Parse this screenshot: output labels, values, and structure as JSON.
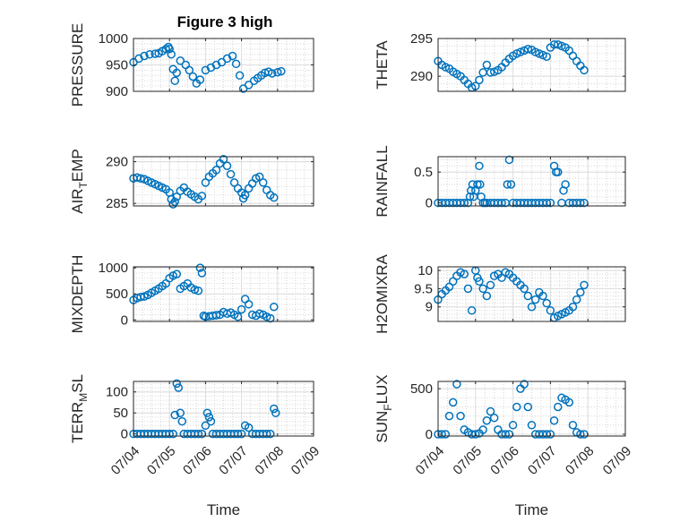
{
  "figure": {
    "title": "Figure 3 high",
    "marker_color": "#0072BD"
  },
  "chart_data": [
    {
      "type": "scatter",
      "ylabel": "PRESSURE",
      "xlabel": "",
      "xlim": [
        0,
        5
      ],
      "ylim": [
        900,
        1000
      ],
      "yticks": [
        900,
        950,
        1000
      ],
      "ytick_labels": [
        "900",
        "950",
        "1000"
      ],
      "xticks": [
        0,
        1,
        2,
        3,
        4,
        5
      ],
      "xtick_labels": [
        "",
        "",
        "",
        "",
        "",
        ""
      ],
      "grid": true,
      "x": [
        0.0,
        0.15,
        0.3,
        0.45,
        0.6,
        0.7,
        0.8,
        0.9,
        0.97,
        1.0,
        1.05,
        1.1,
        1.15,
        1.2,
        1.3,
        1.45,
        1.55,
        1.65,
        1.75,
        1.85,
        2.0,
        2.15,
        2.3,
        2.45,
        2.6,
        2.75,
        2.85,
        2.95,
        3.05,
        3.2,
        3.35,
        3.45,
        3.55,
        3.65,
        3.75,
        3.85,
        4.0,
        4.1
      ],
      "y": [
        955,
        962,
        967,
        970,
        971,
        972,
        976,
        980,
        984,
        980,
        970,
        942,
        920,
        935,
        958,
        950,
        940,
        928,
        915,
        922,
        940,
        945,
        950,
        955,
        962,
        967,
        952,
        930,
        905,
        912,
        920,
        925,
        930,
        935,
        937,
        934,
        936,
        938
      ]
    },
    {
      "type": "scatter",
      "ylabel": "THETA",
      "xlabel": "",
      "xlim": [
        0,
        5
      ],
      "ylim": [
        288,
        295
      ],
      "yticks": [
        290,
        295
      ],
      "ytick_labels": [
        "290",
        "295"
      ],
      "xticks": [
        0,
        1,
        2,
        3,
        4,
        5
      ],
      "xtick_labels": [
        "",
        "",
        "",
        "",
        "",
        ""
      ],
      "grid": true,
      "x": [
        0.0,
        0.1,
        0.2,
        0.3,
        0.4,
        0.5,
        0.6,
        0.7,
        0.8,
        0.9,
        1.0,
        1.1,
        1.2,
        1.3,
        1.4,
        1.5,
        1.6,
        1.7,
        1.8,
        1.9,
        2.0,
        2.1,
        2.2,
        2.3,
        2.4,
        2.5,
        2.6,
        2.7,
        2.8,
        2.9,
        3.0,
        3.1,
        3.2,
        3.3,
        3.4,
        3.5,
        3.6,
        3.7,
        3.8,
        3.9
      ],
      "y": [
        292.0,
        291.5,
        291.2,
        291.0,
        290.6,
        290.3,
        290.0,
        289.5,
        289.0,
        288.5,
        288.7,
        289.5,
        290.5,
        291.5,
        290.5,
        290.6,
        290.8,
        291.2,
        291.8,
        292.3,
        292.7,
        293.0,
        293.2,
        293.4,
        293.6,
        293.5,
        293.2,
        293.0,
        292.8,
        292.6,
        293.8,
        294.2,
        294.2,
        294.0,
        293.8,
        293.4,
        292.7,
        292.0,
        291.4,
        290.8
      ]
    },
    {
      "type": "scatter",
      "ylabel": "AIR_TEMP",
      "xlabel": "",
      "xlim": [
        0,
        5
      ],
      "ylim": [
        284.7,
        290.6
      ],
      "yticks": [
        285,
        290
      ],
      "ytick_labels": [
        "285",
        "290"
      ],
      "xticks": [
        0,
        1,
        2,
        3,
        4,
        5
      ],
      "xtick_labels": [
        "",
        "",
        "",
        "",
        "",
        ""
      ],
      "grid": true,
      "x": [
        0.0,
        0.1,
        0.2,
        0.3,
        0.4,
        0.5,
        0.6,
        0.7,
        0.8,
        0.9,
        1.0,
        1.05,
        1.1,
        1.15,
        1.2,
        1.3,
        1.4,
        1.5,
        1.6,
        1.7,
        1.8,
        1.9,
        2.0,
        2.1,
        2.2,
        2.3,
        2.4,
        2.5,
        2.6,
        2.7,
        2.8,
        2.9,
        3.0,
        3.05,
        3.1,
        3.2,
        3.3,
        3.4,
        3.5,
        3.6,
        3.7,
        3.8,
        3.9
      ],
      "y": [
        288.0,
        288.1,
        288.0,
        287.9,
        287.7,
        287.5,
        287.3,
        287.1,
        286.9,
        286.7,
        286.3,
        285.5,
        284.9,
        285.2,
        285.8,
        286.5,
        286.9,
        286.4,
        286.1,
        285.8,
        285.5,
        285.9,
        287.5,
        288.2,
        288.6,
        289.0,
        289.8,
        290.3,
        289.5,
        288.5,
        287.5,
        286.8,
        286.3,
        285.6,
        286.0,
        286.8,
        287.4,
        288.0,
        288.2,
        287.5,
        286.6,
        286.0,
        285.7
      ]
    },
    {
      "type": "scatter",
      "ylabel": "RAINFALL",
      "xlabel": "",
      "xlim": [
        0,
        5
      ],
      "ylim": [
        -0.05,
        0.75
      ],
      "yticks": [
        0,
        0.5
      ],
      "ytick_labels": [
        "0",
        "0.5"
      ],
      "xticks": [
        0,
        1,
        2,
        3,
        4,
        5
      ],
      "xtick_labels": [
        "",
        "",
        "",
        "",
        "",
        ""
      ],
      "grid": true,
      "x": [
        0.0,
        0.1,
        0.2,
        0.3,
        0.4,
        0.5,
        0.6,
        0.7,
        0.8,
        0.85,
        0.88,
        0.92,
        0.95,
        1.0,
        1.05,
        1.1,
        1.12,
        1.15,
        1.2,
        1.25,
        1.3,
        1.4,
        1.5,
        1.6,
        1.7,
        1.8,
        1.85,
        1.9,
        1.95,
        2.0,
        2.1,
        2.2,
        2.3,
        2.4,
        2.5,
        2.6,
        2.7,
        2.8,
        2.9,
        3.0,
        3.1,
        3.15,
        3.2,
        3.3,
        3.35,
        3.4,
        3.5,
        3.6,
        3.7,
        3.8,
        3.9
      ],
      "y": [
        0,
        0,
        0,
        0,
        0,
        0,
        0,
        0,
        0,
        0.1,
        0.2,
        0.3,
        0.1,
        0.2,
        0.3,
        0.6,
        0.3,
        0.1,
        0,
        0,
        0,
        0,
        0,
        0,
        0,
        0,
        0.3,
        0.7,
        0.3,
        0,
        0,
        0,
        0,
        0,
        0,
        0,
        0,
        0,
        0,
        0,
        0.6,
        0.5,
        0.5,
        0,
        0.2,
        0.3,
        0,
        0,
        0,
        0,
        0
      ]
    },
    {
      "type": "scatter",
      "ylabel": "MIXDEPTH",
      "xlabel": "",
      "xlim": [
        0,
        5
      ],
      "ylim": [
        -30,
        1020
      ],
      "yticks": [
        0,
        500,
        1000
      ],
      "ytick_labels": [
        "0",
        "500",
        "1000"
      ],
      "xticks": [
        0,
        1,
        2,
        3,
        4,
        5
      ],
      "xtick_labels": [
        "",
        "",
        "",
        "",
        "",
        ""
      ],
      "grid": true,
      "x": [
        0.0,
        0.1,
        0.2,
        0.3,
        0.4,
        0.5,
        0.6,
        0.7,
        0.8,
        0.9,
        1.0,
        1.1,
        1.2,
        1.3,
        1.4,
        1.5,
        1.6,
        1.7,
        1.8,
        1.85,
        1.9,
        1.95,
        2.0,
        2.1,
        2.2,
        2.3,
        2.4,
        2.5,
        2.6,
        2.7,
        2.8,
        2.9,
        3.0,
        3.1,
        3.2,
        3.3,
        3.4,
        3.5,
        3.6,
        3.7,
        3.8,
        3.9
      ],
      "y": [
        380,
        420,
        440,
        450,
        480,
        520,
        560,
        600,
        650,
        700,
        800,
        850,
        880,
        600,
        650,
        700,
        620,
        580,
        560,
        1000,
        900,
        80,
        60,
        70,
        80,
        90,
        100,
        150,
        120,
        140,
        100,
        60,
        200,
        400,
        300,
        100,
        80,
        120,
        100,
        60,
        30,
        250
      ]
    },
    {
      "type": "scatter",
      "ylabel": "H2OMIXRA",
      "xlabel": "",
      "xlim": [
        0,
        5
      ],
      "ylim": [
        8.6,
        10.1
      ],
      "yticks": [
        9,
        9.5,
        10
      ],
      "ytick_labels": [
        "9",
        "9.5",
        "10"
      ],
      "xticks": [
        0,
        1,
        2,
        3,
        4,
        5
      ],
      "xtick_labels": [
        "",
        "",
        "",
        "",
        "",
        ""
      ],
      "grid": true,
      "x": [
        0.0,
        0.1,
        0.2,
        0.3,
        0.4,
        0.5,
        0.6,
        0.7,
        0.8,
        0.9,
        1.0,
        1.05,
        1.1,
        1.2,
        1.3,
        1.4,
        1.5,
        1.6,
        1.7,
        1.8,
        1.9,
        2.0,
        2.1,
        2.2,
        2.3,
        2.4,
        2.5,
        2.6,
        2.7,
        2.8,
        2.9,
        3.0,
        3.1,
        3.2,
        3.3,
        3.4,
        3.5,
        3.6,
        3.7,
        3.8,
        3.9
      ],
      "y": [
        9.2,
        9.35,
        9.45,
        9.55,
        9.7,
        9.85,
        9.95,
        9.9,
        9.5,
        8.9,
        10.0,
        9.8,
        9.7,
        9.5,
        9.3,
        9.6,
        9.85,
        9.9,
        9.8,
        9.95,
        9.9,
        9.8,
        9.7,
        9.6,
        9.5,
        9.3,
        9.0,
        9.2,
        9.4,
        9.3,
        9.1,
        8.9,
        8.7,
        8.75,
        8.8,
        8.85,
        8.9,
        9.0,
        9.2,
        9.4,
        9.6
      ]
    },
    {
      "type": "scatter",
      "ylabel": "TERR_MSL",
      "xlabel": "Time",
      "xlim": [
        0,
        5
      ],
      "ylim": [
        -5,
        125
      ],
      "yticks": [
        0,
        50,
        100
      ],
      "ytick_labels": [
        "0",
        "50",
        "100"
      ],
      "xticks": [
        0,
        1,
        2,
        3,
        4,
        5
      ],
      "xtick_labels": [
        "07/04",
        "07/05",
        "07/06",
        "07/07",
        "07/08",
        "07/09"
      ],
      "grid": true,
      "x": [
        0.0,
        0.1,
        0.2,
        0.3,
        0.4,
        0.5,
        0.6,
        0.7,
        0.8,
        0.9,
        1.0,
        1.1,
        1.15,
        1.2,
        1.25,
        1.3,
        1.35,
        1.4,
        1.5,
        1.6,
        1.7,
        1.8,
        1.9,
        2.0,
        2.05,
        2.1,
        2.15,
        2.2,
        2.3,
        2.4,
        2.5,
        2.6,
        2.7,
        2.8,
        2.9,
        3.0,
        3.1,
        3.2,
        3.3,
        3.4,
        3.5,
        3.6,
        3.7,
        3.8,
        3.9,
        3.95
      ],
      "y": [
        0,
        0,
        0,
        0,
        0,
        0,
        0,
        0,
        0,
        0,
        0,
        0,
        45,
        120,
        110,
        50,
        30,
        0,
        0,
        0,
        0,
        0,
        0,
        20,
        50,
        40,
        30,
        0,
        0,
        0,
        0,
        0,
        0,
        0,
        0,
        0,
        20,
        15,
        0,
        0,
        0,
        0,
        0,
        0,
        60,
        50
      ]
    },
    {
      "type": "scatter",
      "ylabel": "SUN_FLUX",
      "xlabel": "Time",
      "xlim": [
        0,
        5
      ],
      "ylim": [
        -20,
        580
      ],
      "yticks": [
        0,
        500
      ],
      "ytick_labels": [
        "0",
        "500"
      ],
      "xticks": [
        0,
        1,
        2,
        3,
        4,
        5
      ],
      "xtick_labels": [
        "07/04",
        "07/05",
        "07/06",
        "07/07",
        "07/08",
        "07/09"
      ],
      "grid": true,
      "x": [
        0.0,
        0.1,
        0.2,
        0.3,
        0.4,
        0.5,
        0.6,
        0.7,
        0.8,
        0.9,
        1.0,
        1.1,
        1.2,
        1.3,
        1.4,
        1.5,
        1.6,
        1.7,
        1.8,
        1.9,
        2.0,
        2.1,
        2.2,
        2.3,
        2.4,
        2.5,
        2.6,
        2.7,
        2.8,
        2.9,
        3.0,
        3.1,
        3.2,
        3.3,
        3.4,
        3.5,
        3.6,
        3.7,
        3.8,
        3.9
      ],
      "y": [
        0,
        0,
        0,
        200,
        350,
        550,
        200,
        50,
        20,
        0,
        0,
        10,
        50,
        150,
        250,
        180,
        50,
        0,
        0,
        0,
        100,
        300,
        500,
        550,
        300,
        100,
        0,
        0,
        0,
        0,
        0,
        150,
        300,
        400,
        380,
        350,
        100,
        20,
        0,
        0
      ]
    }
  ]
}
